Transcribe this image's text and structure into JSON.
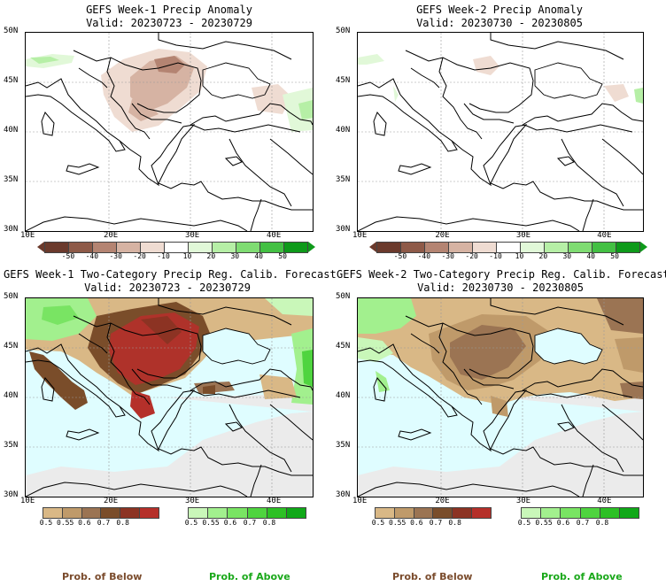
{
  "panels": [
    {
      "title1": "GEFS Week-1 Precip Anomaly",
      "title2": "Valid: 20230723 - 20230729"
    },
    {
      "title1": "GEFS Week-2 Precip Anomaly",
      "title2": "Valid: 20230730 - 20230805"
    },
    {
      "title1": "GEFS Week-1 Two-Category Precip Reg. Calib. Forecast",
      "title2": "Valid: 20230723 - 20230729"
    },
    {
      "title1": "GEFS Week-2 Two-Category Precip Reg. Calib. Forecast",
      "title2": "Valid: 20230730 - 20230805"
    }
  ],
  "lat_ticks": [
    "50N",
    "45N",
    "40N",
    "35N",
    "30N"
  ],
  "lon_ticks": [
    "10E",
    "20E",
    "30E",
    "40E"
  ],
  "anomaly_colorbar": {
    "labels": [
      "-50",
      "-40",
      "-30",
      "-20",
      "-10",
      "10",
      "20",
      "30",
      "40",
      "50"
    ],
    "colors": [
      "#6b3a2c",
      "#8e5a48",
      "#b48472",
      "#d6b3a3",
      "#efdcd2",
      "#ffffff",
      "#e1f8d8",
      "#b6efa6",
      "#7fdc72",
      "#43c043",
      "#0e9a1a"
    ]
  },
  "below_colorbar": {
    "labels": [
      "0.5",
      "0.55",
      "0.6",
      "0.7",
      "0.8"
    ],
    "colors": [
      "#d9b886",
      "#bf9a6a",
      "#9b7453",
      "#7a4d2a",
      "#8c3323",
      "#b5302a"
    ]
  },
  "above_colorbar": {
    "labels": [
      "0.5",
      "0.55",
      "0.6",
      "0.7",
      "0.8"
    ],
    "colors": [
      "#c9f7b9",
      "#a2f08e",
      "#79e463",
      "#4fd43f",
      "#2dc025",
      "#10a818"
    ]
  },
  "captions": {
    "below": "Prob. of Below",
    "above": "Prob. of Above"
  },
  "colors": {
    "sea": "#dffdff",
    "no_forecast": "#ebebeb",
    "below_text": "#7a4b2c",
    "above_text": "#1aa81a"
  }
}
